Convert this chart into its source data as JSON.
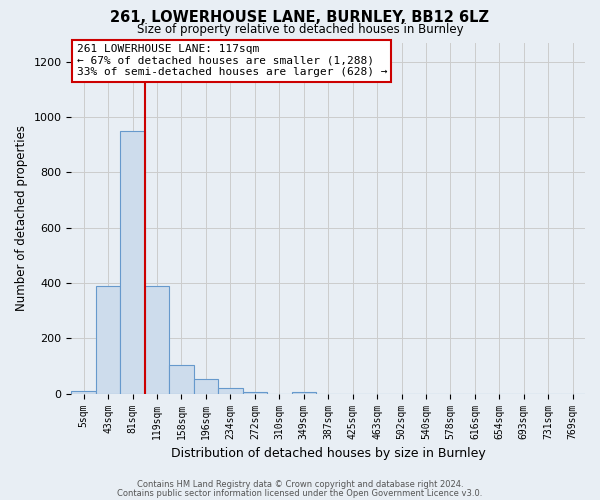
{
  "title": "261, LOWERHOUSE LANE, BURNLEY, BB12 6LZ",
  "subtitle": "Size of property relative to detached houses in Burnley",
  "xlabel": "Distribution of detached houses by size in Burnley",
  "ylabel": "Number of detached properties",
  "bar_labels": [
    "5sqm",
    "43sqm",
    "81sqm",
    "119sqm",
    "158sqm",
    "196sqm",
    "234sqm",
    "272sqm",
    "310sqm",
    "349sqm",
    "387sqm",
    "425sqm",
    "463sqm",
    "502sqm",
    "540sqm",
    "578sqm",
    "616sqm",
    "654sqm",
    "693sqm",
    "731sqm",
    "769sqm"
  ],
  "bar_heights": [
    10,
    390,
    950,
    390,
    105,
    52,
    22,
    5,
    0,
    5,
    0,
    0,
    0,
    0,
    0,
    0,
    0,
    0,
    0,
    0,
    0
  ],
  "bar_color": "#cddcec",
  "bar_edge_color": "#6699cc",
  "grid_color": "#cccccc",
  "vline_x": 2.5,
  "vline_color": "#cc0000",
  "annotation_box_color": "#cc0000",
  "annotation_lines": [
    "261 LOWERHOUSE LANE: 117sqm",
    "← 67% of detached houses are smaller (1,288)",
    "33% of semi-detached houses are larger (628) →"
  ],
  "ylim": [
    0,
    1270
  ],
  "yticks": [
    0,
    200,
    400,
    600,
    800,
    1000,
    1200
  ],
  "footer_lines": [
    "Contains HM Land Registry data © Crown copyright and database right 2024.",
    "Contains public sector information licensed under the Open Government Licence v3.0."
  ],
  "background_color": "#ffffff",
  "fig_background_color": "#e8eef4"
}
